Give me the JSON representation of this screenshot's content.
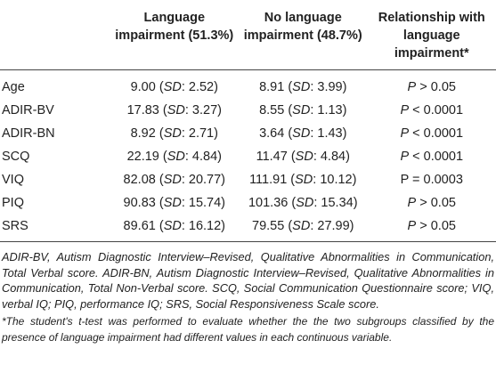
{
  "table": {
    "header": [
      "",
      "Language impairment (51.3%)",
      "No language impairment (48.7%)",
      "Relationship with language impairment*"
    ],
    "rows": [
      {
        "label": "Age",
        "cells": [
          [
            "9.00 (",
            {
              "i": "SD"
            },
            ": 2.52)"
          ],
          [
            "8.91 (",
            {
              "i": "SD"
            },
            ": 3.99)"
          ],
          [
            {
              "i": "P"
            },
            " > 0.05"
          ]
        ]
      },
      {
        "label": "ADIR-BV",
        "cells": [
          [
            "17.83 (",
            {
              "i": "SD"
            },
            ": 3.27)"
          ],
          [
            "8.55 (",
            {
              "i": "SD"
            },
            ": 1.13)"
          ],
          [
            {
              "i": "P"
            },
            " < 0.0001"
          ]
        ]
      },
      {
        "label": "ADIR-BN",
        "cells": [
          [
            "8.92 (",
            {
              "i": "SD"
            },
            ": 2.71)"
          ],
          [
            "3.64 (",
            {
              "i": "SD"
            },
            ": 1.43)"
          ],
          [
            {
              "i": "P"
            },
            " < 0.0001"
          ]
        ]
      },
      {
        "label": "SCQ",
        "cells": [
          [
            "22.19 (",
            {
              "i": "SD"
            },
            ": 4.84)"
          ],
          [
            "11.47 (",
            {
              "i": "SD"
            },
            ": 4.84)"
          ],
          [
            {
              "i": "P"
            },
            " < 0.0001"
          ]
        ]
      },
      {
        "label": "VIQ",
        "cells": [
          [
            "82.08 (",
            {
              "i": "SD"
            },
            ": 20.77)"
          ],
          [
            "111.91 (",
            {
              "i": "SD"
            },
            ": 10.12)"
          ],
          [
            "P = 0.0003"
          ]
        ]
      },
      {
        "label": "PIQ",
        "cells": [
          [
            "90.83 (",
            {
              "i": "SD"
            },
            ": 15.74)"
          ],
          [
            "101.36 (",
            {
              "i": "SD"
            },
            ": 15.34)"
          ],
          [
            {
              "i": "P"
            },
            " > 0.05"
          ]
        ]
      },
      {
        "label": "SRS",
        "cells": [
          [
            "89.61 (",
            {
              "i": "SD"
            },
            ": 16.12)"
          ],
          [
            "79.55 (",
            {
              "i": "SD"
            },
            ": 27.99)"
          ],
          [
            {
              "i": "P"
            },
            " > 0.05"
          ]
        ]
      }
    ]
  },
  "notes": [
    "ADIR-BV, Autism Diagnostic Interview–Revised, Qualitative Abnormalities in Communication, Total Verbal score. ADIR-BN, Autism Diagnostic Interview–Revised, Qualitative Abnormalities in Communication, Total Non-Verbal score. SCQ, Social Communication Questionnaire score; VIQ, verbal IQ; PIQ, performance IQ; SRS, Social Responsiveness Scale score.",
    "*The student's t-test was performed to evaluate whether the the two subgroups classified by the presence of language impairment had different values in each continuous variable."
  ]
}
